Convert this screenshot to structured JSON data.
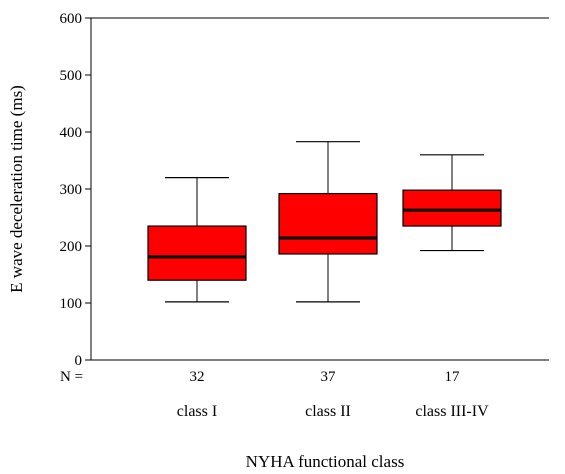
{
  "chart_data": {
    "type": "box",
    "xlabel": "NYHA functional class",
    "ylabel": "E wave deceleration time (ms)",
    "ylim": [
      0,
      600
    ],
    "yticks": [
      0,
      100,
      200,
      300,
      400,
      500,
      600
    ],
    "n_label": "N =",
    "grid": false,
    "colors": {
      "box_fill": "#ff0000",
      "stroke": "#000000"
    },
    "categories": [
      "class I",
      "class II",
      "class III-IV"
    ],
    "n": [
      "32",
      "37",
      "17"
    ],
    "boxes": [
      {
        "min": 102,
        "q1": 140,
        "median": 181,
        "q3": 235,
        "max": 320
      },
      {
        "min": 102,
        "q1": 186,
        "median": 214,
        "q3": 292,
        "max": 383
      },
      {
        "min": 192,
        "q1": 235,
        "median": 263,
        "q3": 298,
        "max": 360
      }
    ]
  }
}
